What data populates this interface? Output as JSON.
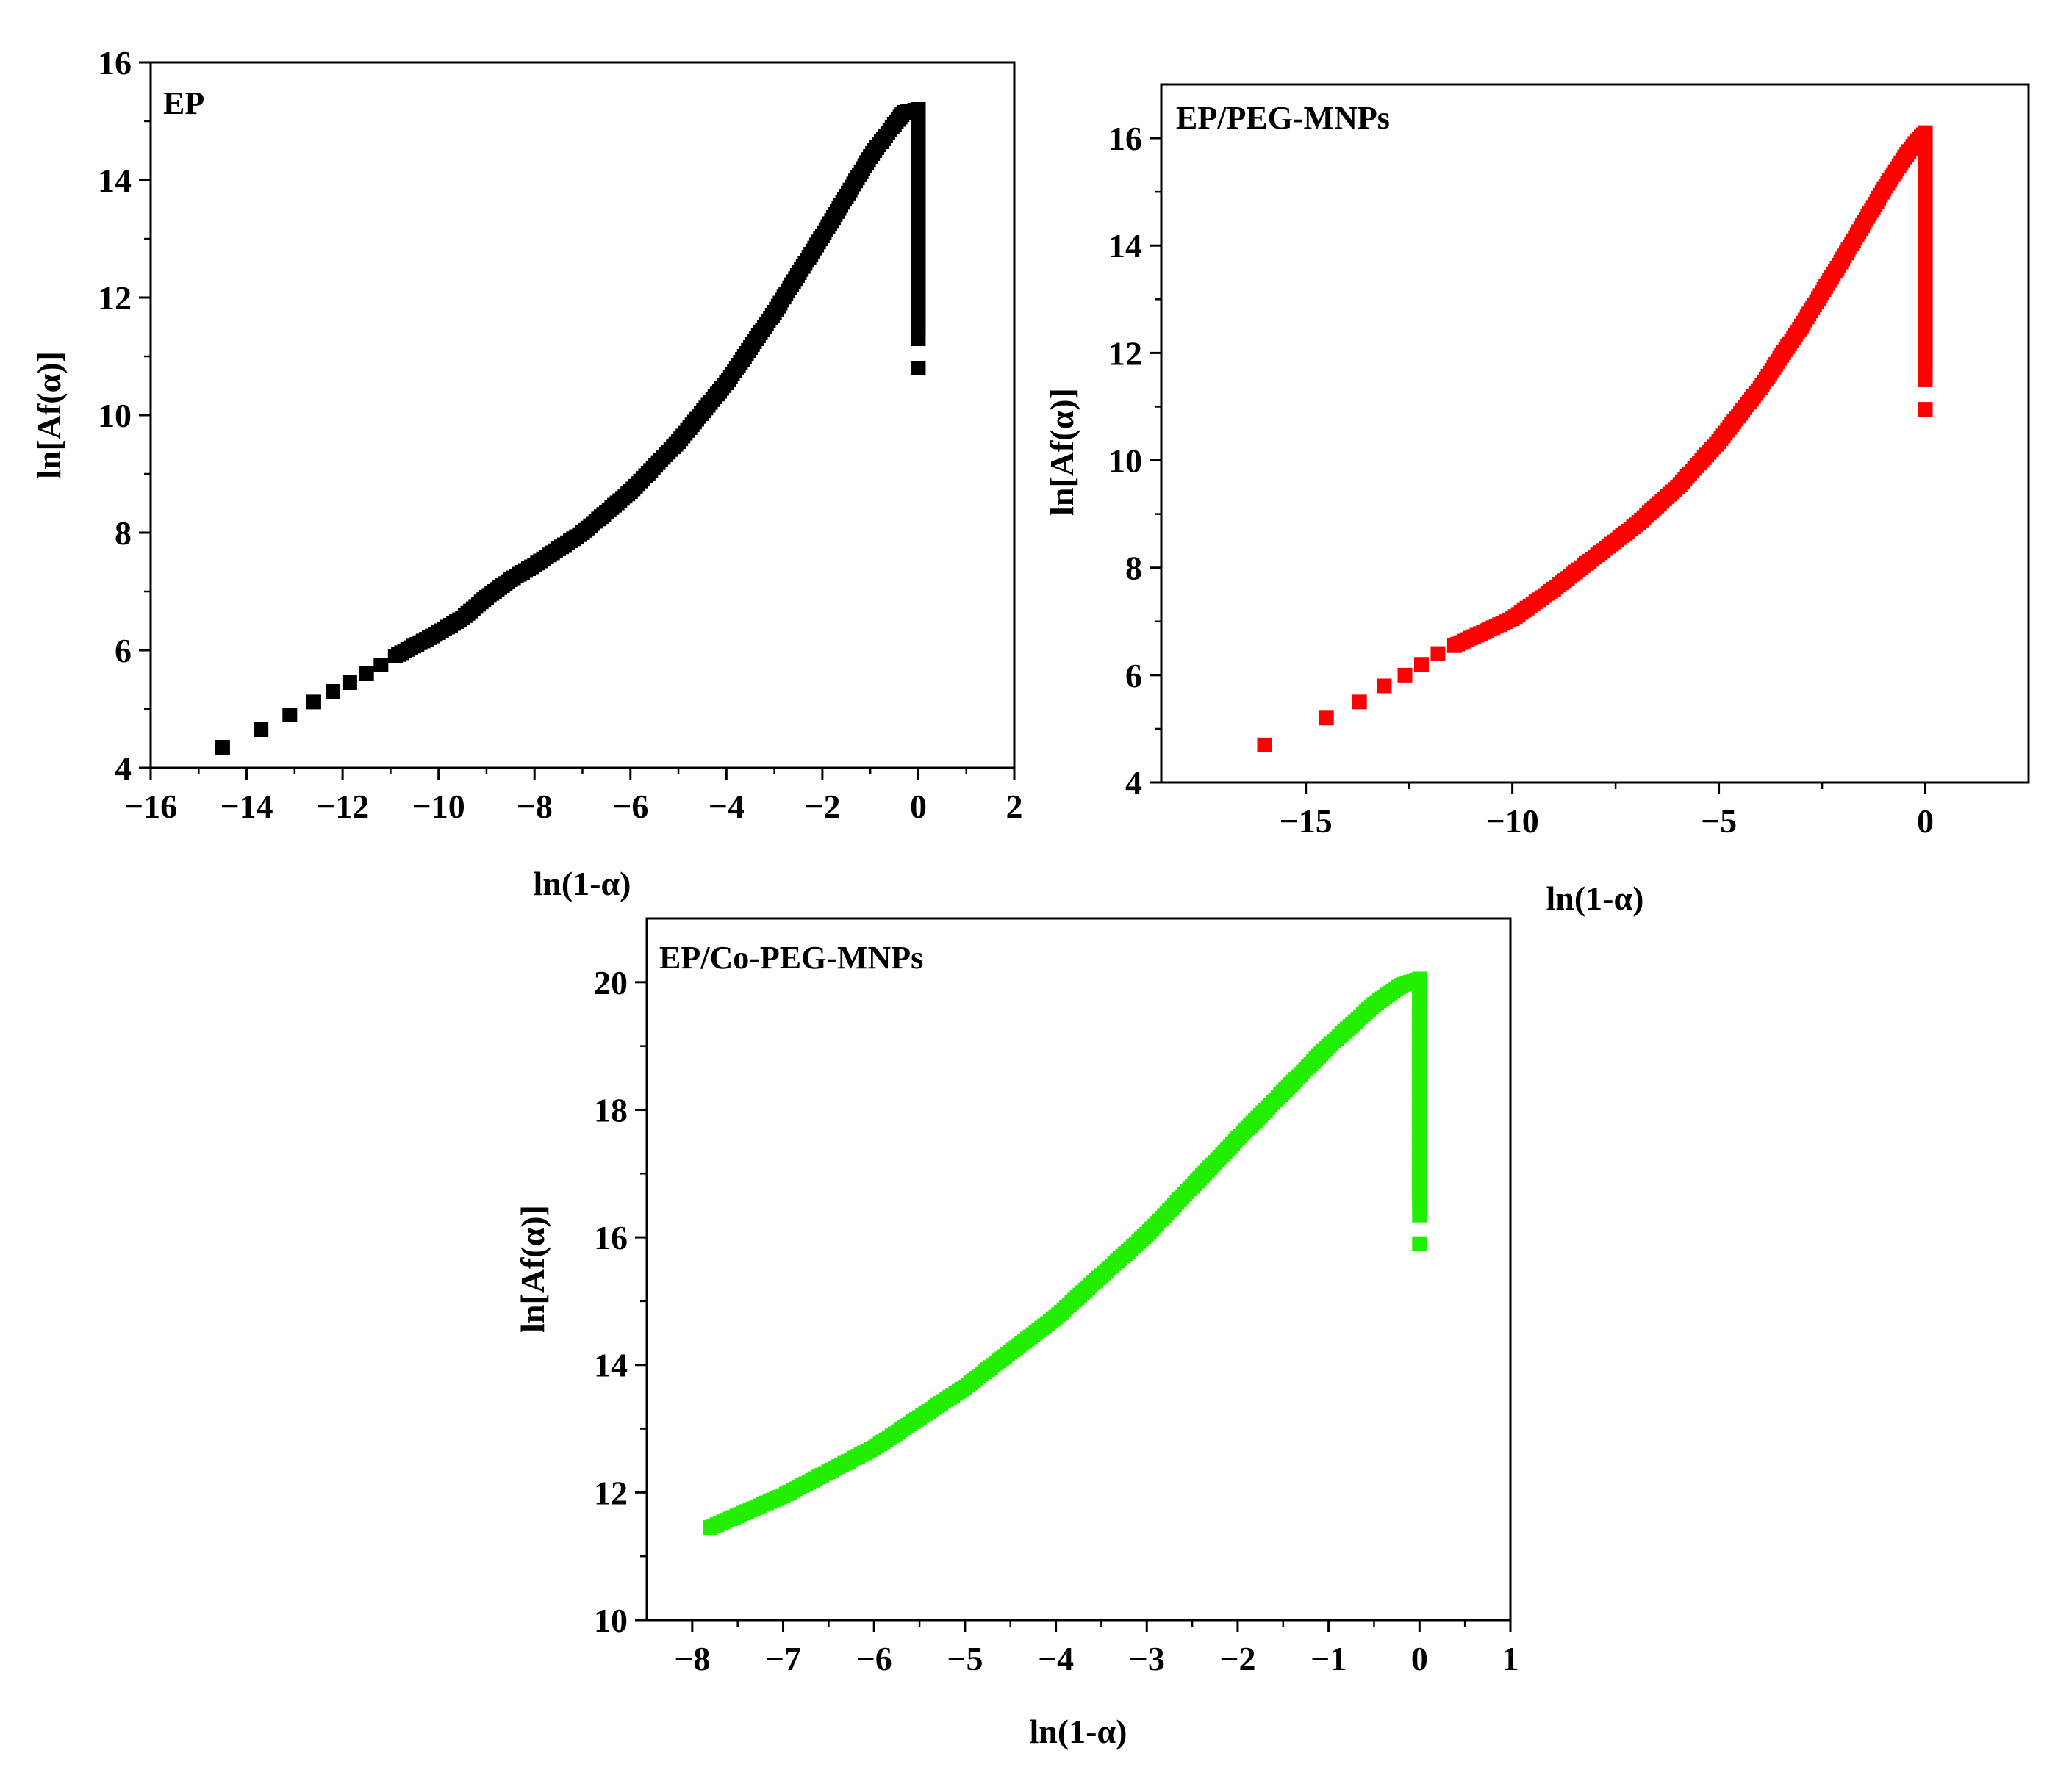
{
  "figure": {
    "panel_count": 3
  },
  "chart_data": [
    {
      "type": "scatter",
      "panel_label": "EP",
      "xlabel": "ln(1-α)",
      "ylabel": "ln[Af(α)]",
      "xlim": [
        -16,
        2
      ],
      "ylim": [
        4,
        16
      ],
      "xticks": [
        -16,
        -14,
        -12,
        -10,
        -8,
        -6,
        -4,
        -2,
        0,
        2
      ],
      "yticks": [
        4,
        6,
        8,
        10,
        12,
        14,
        16
      ],
      "series": [
        {
          "name": "EP",
          "color": "#000000",
          "sparse_points": [
            [
              -14.5,
              4.35
            ],
            [
              -13.7,
              4.65
            ],
            [
              -13.1,
              4.9
            ],
            [
              -12.6,
              5.12
            ],
            [
              -12.2,
              5.3
            ],
            [
              -11.85,
              5.45
            ],
            [
              -11.5,
              5.6
            ],
            [
              -11.2,
              5.75
            ],
            [
              -10.9,
              5.9
            ]
          ],
          "dense_curve": [
            [
              -10.9,
              5.9
            ],
            [
              -10.0,
              6.3
            ],
            [
              -9.5,
              6.55
            ],
            [
              -9.0,
              6.9
            ],
            [
              -8.5,
              7.2
            ],
            [
              -8.0,
              7.45
            ],
            [
              -7.0,
              8.0
            ],
            [
              -6.0,
              8.7
            ],
            [
              -5.0,
              9.55
            ],
            [
              -4.0,
              10.55
            ],
            [
              -3.0,
              11.75
            ],
            [
              -2.0,
              13.05
            ],
            [
              -1.0,
              14.4
            ],
            [
              -0.5,
              14.95
            ],
            [
              -0.3,
              15.15
            ],
            [
              0.0,
              15.2
            ]
          ],
          "drop_x": 0.0,
          "drop_to": 11.5,
          "drop_tail_points": [
            [
              0.0,
              11.3
            ],
            [
              0.0,
              10.8
            ]
          ]
        }
      ]
    },
    {
      "type": "scatter",
      "panel_label": "EP/PEG-MNPs",
      "xlabel": "ln(1-α)",
      "ylabel": "ln[Af(α)]",
      "xlim": [
        -18.5,
        2.5
      ],
      "ylim": [
        4,
        17
      ],
      "xticks": [
        -15,
        -10,
        -5,
        0
      ],
      "yticks": [
        4,
        6,
        8,
        10,
        12,
        14,
        16
      ],
      "series": [
        {
          "name": "EP/PEG-MNPs",
          "color": "#ff0000",
          "sparse_points": [
            [
              -16.0,
              4.7
            ],
            [
              -14.5,
              5.2
            ],
            [
              -13.7,
              5.5
            ],
            [
              -13.1,
              5.8
            ],
            [
              -12.6,
              6.0
            ],
            [
              -12.2,
              6.2
            ],
            [
              -11.8,
              6.4
            ],
            [
              -11.4,
              6.55
            ]
          ],
          "dense_curve": [
            [
              -11.4,
              6.55
            ],
            [
              -10.0,
              7.05
            ],
            [
              -9.0,
              7.6
            ],
            [
              -8.0,
              8.2
            ],
            [
              -7.0,
              8.8
            ],
            [
              -6.0,
              9.5
            ],
            [
              -5.0,
              10.35
            ],
            [
              -4.0,
              11.35
            ],
            [
              -3.0,
              12.5
            ],
            [
              -2.0,
              13.75
            ],
            [
              -1.0,
              15.05
            ],
            [
              -0.5,
              15.65
            ],
            [
              -0.2,
              15.95
            ],
            [
              0.0,
              16.1
            ]
          ],
          "drop_x": 0.0,
          "drop_to": 11.7,
          "drop_tail_points": [
            [
              0.0,
              11.5
            ],
            [
              0.0,
              10.95
            ]
          ]
        }
      ]
    },
    {
      "type": "scatter",
      "panel_label": "EP/Co-PEG-MNPs",
      "xlabel": "ln(1-α)",
      "ylabel": "ln[Af(α)]",
      "xlim": [
        -8.5,
        1
      ],
      "ylim": [
        10,
        21
      ],
      "xticks": [
        -8,
        -7,
        -6,
        -5,
        -4,
        -3,
        -2,
        -1,
        0,
        1
      ],
      "yticks": [
        10,
        12,
        14,
        16,
        18,
        20
      ],
      "series": [
        {
          "name": "EP/Co-PEG-MNPs",
          "color": "#22ee00",
          "sparse_points": [],
          "dense_curve": [
            [
              -7.8,
              11.45
            ],
            [
              -7.0,
              11.95
            ],
            [
              -6.0,
              12.7
            ],
            [
              -5.0,
              13.65
            ],
            [
              -4.0,
              14.75
            ],
            [
              -3.0,
              16.05
            ],
            [
              -2.0,
              17.55
            ],
            [
              -1.0,
              19.0
            ],
            [
              -0.5,
              19.65
            ],
            [
              -0.2,
              19.95
            ],
            [
              0.0,
              20.05
            ]
          ],
          "drop_x": 0.0,
          "drop_to": 16.5,
          "drop_tail_points": [
            [
              0.0,
              16.35
            ],
            [
              0.0,
              15.9
            ]
          ]
        }
      ]
    }
  ]
}
